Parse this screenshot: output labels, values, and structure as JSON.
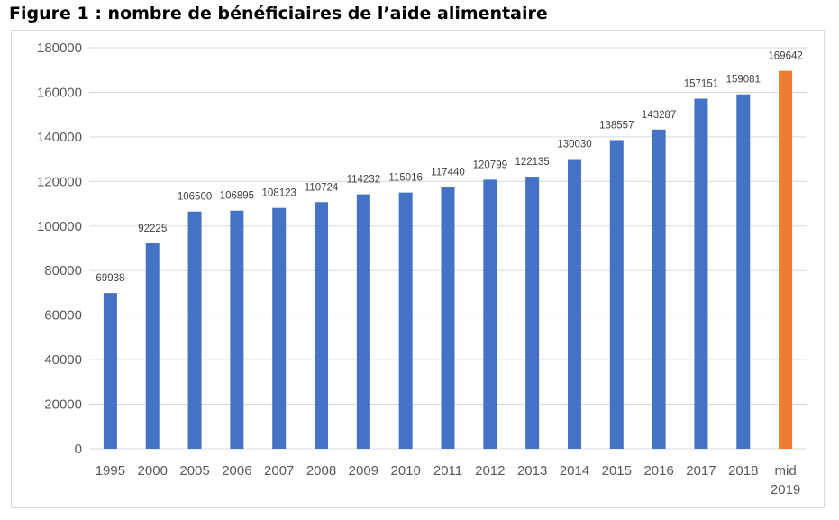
{
  "figure": {
    "title": "Figure 1 : nombre de bénéficiaires de l’aide alimentaire"
  },
  "chart_data": {
    "type": "bar",
    "title": "",
    "xlabel": "",
    "ylabel": "",
    "categories": [
      "1995",
      "2000",
      "2005",
      "2006",
      "2007",
      "2008",
      "2009",
      "2010",
      "2011",
      "2012",
      "2013",
      "2014",
      "2015",
      "2016",
      "2017",
      "2018",
      "mid 2019"
    ],
    "category_lines": [
      [
        "1995"
      ],
      [
        "2000"
      ],
      [
        "2005"
      ],
      [
        "2006"
      ],
      [
        "2007"
      ],
      [
        "2008"
      ],
      [
        "2009"
      ],
      [
        "2010"
      ],
      [
        "2011"
      ],
      [
        "2012"
      ],
      [
        "2013"
      ],
      [
        "2014"
      ],
      [
        "2015"
      ],
      [
        "2016"
      ],
      [
        "2017"
      ],
      [
        "2018"
      ],
      [
        "mid",
        "2019"
      ]
    ],
    "values": [
      69938,
      92225,
      106500,
      106895,
      108123,
      110724,
      114232,
      115016,
      117440,
      120799,
      122135,
      130030,
      138557,
      143287,
      157151,
      159081,
      169642
    ],
    "data_labels": [
      "69938",
      "92225",
      "106500",
      "106895",
      "108123",
      "110724",
      "114232",
      "115016",
      "117440",
      "120799",
      "122135",
      "130030",
      "138557",
      "143287",
      "157151",
      "159081",
      "169642"
    ],
    "y_ticks": [
      0,
      20000,
      40000,
      60000,
      80000,
      100000,
      120000,
      140000,
      160000,
      180000
    ],
    "y_tick_labels": [
      "0",
      "20000",
      "40000",
      "60000",
      "80000",
      "100000",
      "120000",
      "140000",
      "160000",
      "180000"
    ],
    "ylim": [
      0,
      180000
    ],
    "grid": true,
    "legend": false,
    "colors": {
      "bar": "#4472c4",
      "highlight_bar": "#ed7d31",
      "gridline": "#d9d9d9",
      "axis_text": "#595959"
    },
    "highlight_index": 16
  }
}
